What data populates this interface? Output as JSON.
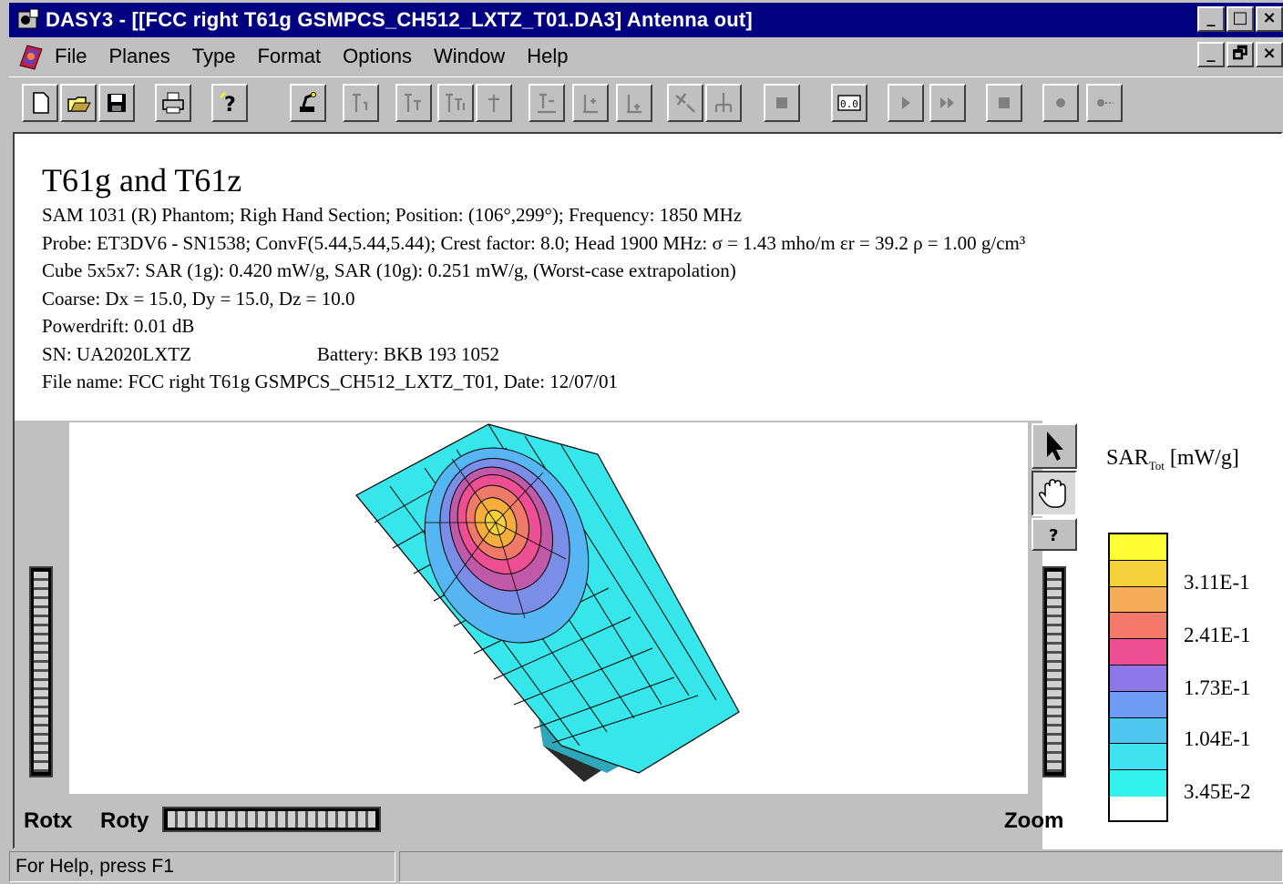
{
  "window": {
    "title": "DASY3 - [[FCC right T61g GSMPCS_CH512_LXTZ_T01.DA3]  Antenna out]",
    "controls": [
      "_",
      "□",
      "×"
    ],
    "mdi_controls": [
      "_",
      "🗗",
      "×"
    ]
  },
  "menu": [
    "File",
    "Planes",
    "Type",
    "Format",
    "Options",
    "Window",
    "Help"
  ],
  "toolbar": {
    "zero_label": "0.0",
    "buttons": [
      "new-icon",
      "open-icon",
      "save-icon",
      "print-icon",
      "help-icon",
      "robot-icon",
      "probe-icon",
      "probe-icon",
      "probe-icon",
      "probe-icon",
      "probe-icon",
      "probe-icon",
      "probe-icon",
      "tool-icon",
      "tool-icon",
      "stop-icon",
      "zero-icon",
      "play-icon",
      "fast-forward-icon",
      "stop-icon",
      "record-icon",
      "record-step-icon"
    ]
  },
  "info": {
    "title": "T61g and T61z",
    "line1": "SAM 1031 (R) Phantom; Righ Hand Section; Position: (106°,299°); Frequency: 1850 MHz",
    "line2": "Probe: ET3DV6 - SN1538; ConvF(5.44,5.44,5.44); Crest factor: 8.0; Head 1900 MHz: σ = 1.43 mho/m εr = 39.2 ρ = 1.00 g/cm³",
    "line3": "Cube 5x5x7: SAR (1g): 0.420  mW/g, SAR (10g): 0.251  mW/g, (Worst-case extrapolation)",
    "line4": "Coarse: Dx = 15.0, Dy = 15.0, Dz = 10.0",
    "line5": "Powerdrift: 0.01 dB",
    "sn": "SN: UA2020LXTZ",
    "battery": "Battery: BKB 193 1052",
    "file": "File name: FCC right T61g GSMPCS_CH512_LXTZ_T01, Date: 12/07/01"
  },
  "controls": {
    "rotx": "Rotx",
    "roty": "Roty",
    "zoom": "Zoom"
  },
  "legend": {
    "title": "SAR",
    "sub": "Tot",
    "unit": " [mW/g]",
    "colors": [
      "#ffff33",
      "#f5d23c",
      "#f6ad5a",
      "#f57a6a",
      "#ee4f93",
      "#8e77e8",
      "#6e9cf2",
      "#4fc7f0",
      "#3fe1ee",
      "#33f2ee"
    ],
    "labels": [
      "3.11E-1",
      "2.41E-1",
      "1.73E-1",
      "1.04E-1",
      "3.45E-2"
    ]
  },
  "status": {
    "text": "For Help, press F1"
  }
}
